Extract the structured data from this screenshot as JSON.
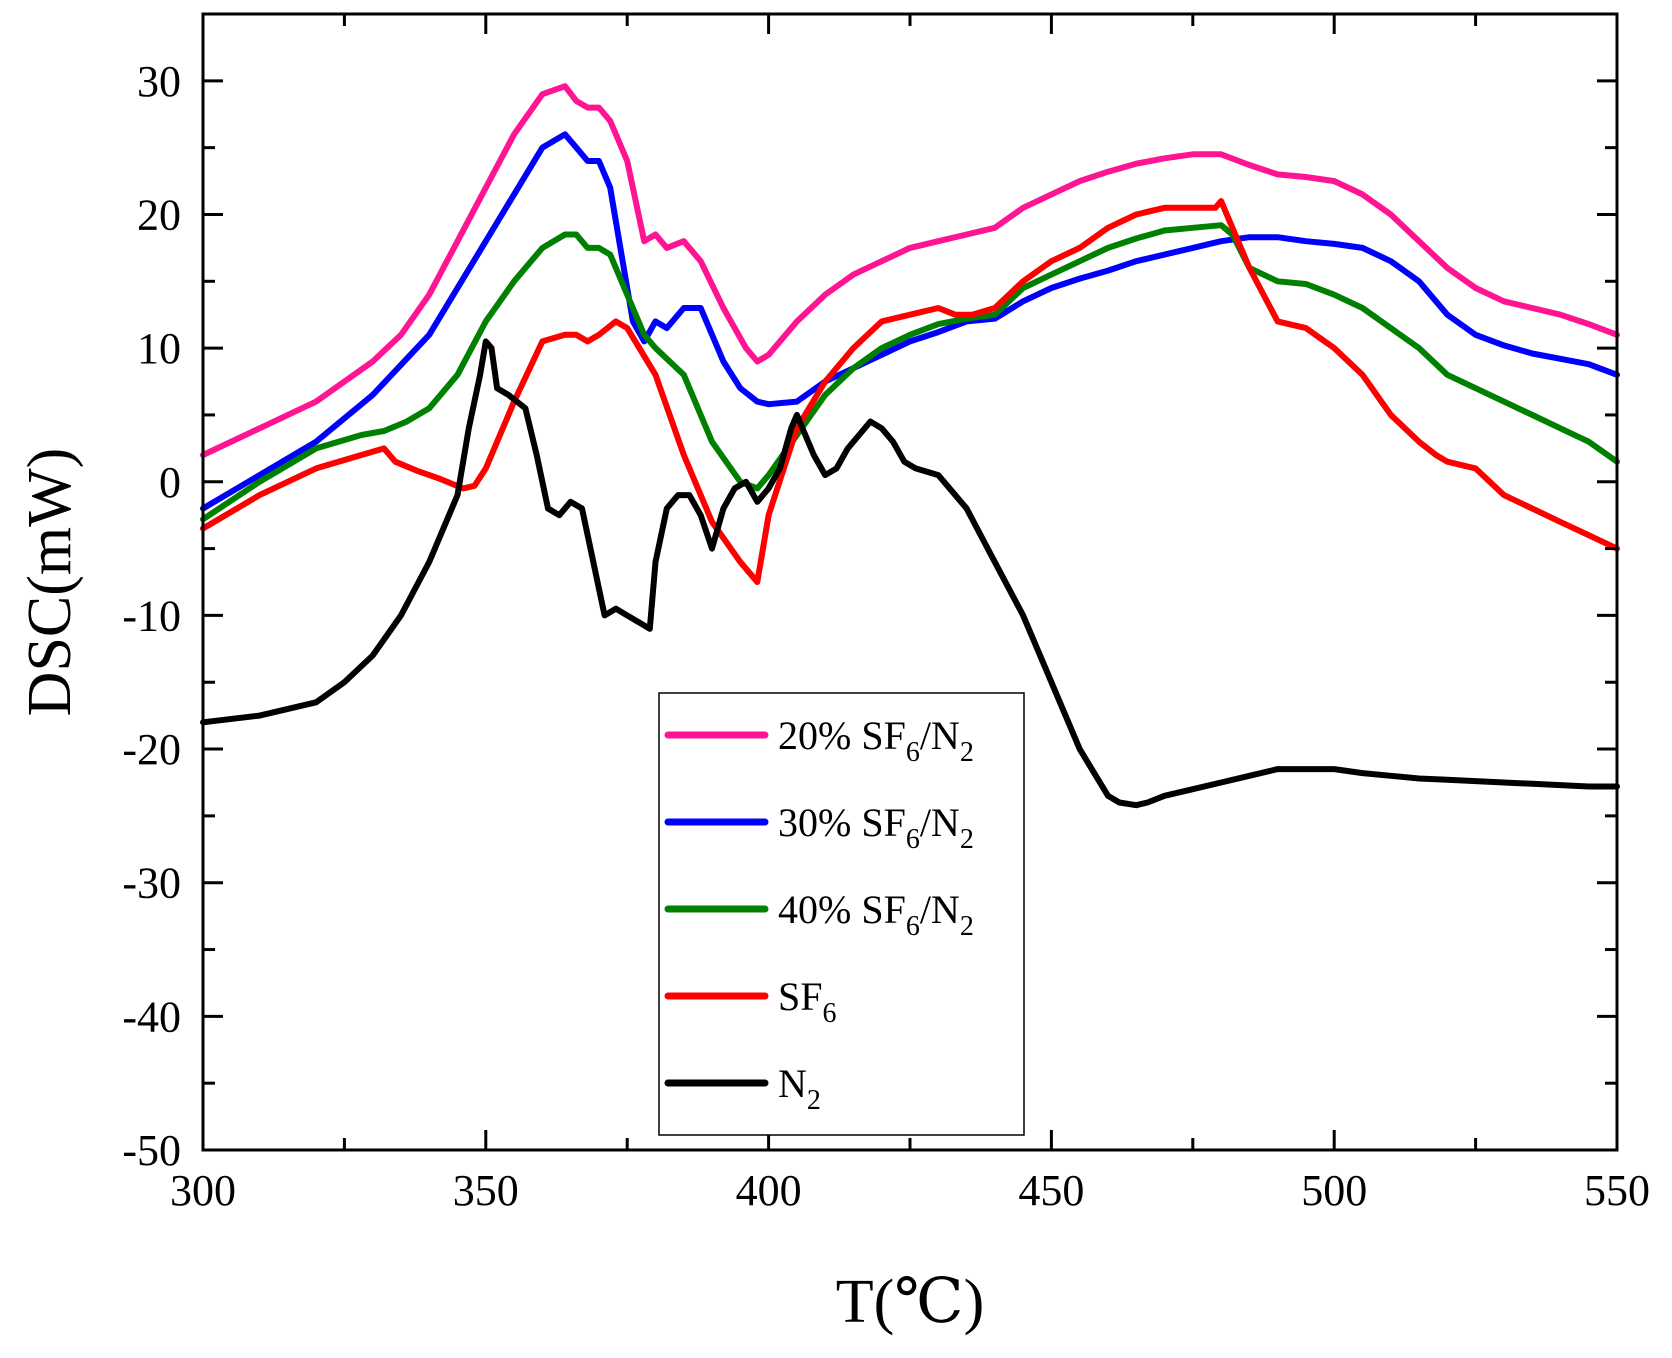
{
  "chart_data": {
    "type": "line",
    "title": "",
    "xlabel": "T(℃)",
    "ylabel": "DSC(mW)",
    "xlim": [
      300,
      550
    ],
    "ylim": [
      -50,
      35
    ],
    "xticks": [
      300,
      350,
      400,
      450,
      500,
      550
    ],
    "yticks": [
      -50,
      -40,
      -30,
      -20,
      -10,
      0,
      10,
      20,
      30
    ],
    "xtick_labels": [
      "300",
      "350",
      "400",
      "450",
      "500",
      "550"
    ],
    "ytick_labels": [
      "-50",
      "-40",
      "-30",
      "-20",
      "-10",
      "0",
      "10",
      "20",
      "30"
    ],
    "grid": false,
    "legend_position": "bottom-center",
    "series": [
      {
        "name": "20% SF6/N2",
        "label_parts": [
          "20% SF",
          "6",
          "/N",
          "2"
        ],
        "color": "#ff1493",
        "x": [
          300,
          310,
          320,
          330,
          335,
          340,
          345,
          350,
          355,
          360,
          364,
          366,
          368,
          370,
          372,
          375,
          378,
          380,
          382,
          385,
          388,
          392,
          396,
          398,
          400,
          405,
          410,
          415,
          420,
          425,
          430,
          435,
          440,
          445,
          450,
          455,
          460,
          465,
          470,
          475,
          480,
          485,
          490,
          495,
          500,
          505,
          510,
          515,
          520,
          525,
          530,
          535,
          540,
          545,
          550
        ],
        "y": [
          2,
          4,
          6,
          9,
          11,
          14,
          18,
          22,
          26,
          29,
          29.6,
          28.5,
          28,
          28,
          27,
          24,
          18,
          18.5,
          17.5,
          18,
          16.5,
          13,
          10,
          9,
          9.5,
          12,
          14,
          15.5,
          16.5,
          17.5,
          18,
          18.5,
          19,
          20.5,
          21.5,
          22.5,
          23.2,
          23.8,
          24.2,
          24.5,
          24.5,
          23.7,
          23,
          22.8,
          22.5,
          21.5,
          20,
          18,
          16,
          14.5,
          13.5,
          13,
          12.5,
          11.8,
          11
        ]
      },
      {
        "name": "30% SF6/N2",
        "label_parts": [
          "30% SF",
          "6",
          "/N",
          "2"
        ],
        "color": "#0000ff",
        "x": [
          300,
          310,
          320,
          330,
          340,
          350,
          355,
          360,
          364,
          366,
          368,
          370,
          372,
          374,
          376,
          378,
          380,
          382,
          385,
          388,
          392,
          395,
          398,
          400,
          405,
          410,
          415,
          420,
          425,
          430,
          435,
          440,
          445,
          450,
          455,
          460,
          465,
          470,
          475,
          480,
          485,
          490,
          495,
          500,
          505,
          510,
          515,
          520,
          525,
          530,
          535,
          540,
          545,
          550
        ],
        "y": [
          -2,
          0.5,
          3,
          6.5,
          11,
          18,
          21.5,
          25,
          26,
          25,
          24,
          24,
          22,
          17,
          12,
          10.5,
          12,
          11.5,
          13,
          13,
          9,
          7,
          6,
          5.8,
          6,
          7.5,
          8.5,
          9.5,
          10.5,
          11.2,
          12,
          12.2,
          13.5,
          14.5,
          15.2,
          15.8,
          16.5,
          17,
          17.5,
          18,
          18.3,
          18.3,
          18,
          17.8,
          17.5,
          16.5,
          15,
          12.5,
          11,
          10.2,
          9.6,
          9.2,
          8.8,
          8
        ]
      },
      {
        "name": "40% SF6/N2",
        "label_parts": [
          "40% SF",
          "6",
          "/N",
          "2"
        ],
        "color": "#008000",
        "x": [
          300,
          310,
          320,
          328,
          332,
          336,
          340,
          345,
          350,
          355,
          360,
          364,
          366,
          368,
          370,
          372,
          375,
          378,
          380,
          385,
          390,
          395,
          398,
          400,
          405,
          410,
          415,
          420,
          425,
          430,
          435,
          440,
          445,
          450,
          455,
          460,
          465,
          470,
          475,
          480,
          482,
          485,
          490,
          495,
          500,
          505,
          510,
          515,
          520,
          525,
          530,
          535,
          540,
          545,
          550
        ],
        "y": [
          -2.8,
          0,
          2.5,
          3.5,
          3.8,
          4.5,
          5.5,
          8,
          12,
          15,
          17.5,
          18.5,
          18.5,
          17.5,
          17.5,
          17,
          14,
          11,
          10,
          8,
          3,
          0,
          -0.5,
          0.5,
          3.5,
          6.5,
          8.5,
          10,
          11,
          11.8,
          12.2,
          12.5,
          14.5,
          15.5,
          16.5,
          17.5,
          18.2,
          18.8,
          19,
          19.2,
          18.5,
          16,
          15,
          14.8,
          14,
          13,
          11.5,
          10,
          8,
          7,
          6,
          5,
          4,
          3,
          1.5
        ]
      },
      {
        "name": "SF6",
        "label_parts": [
          "SF",
          "6",
          "",
          ""
        ],
        "color": "#ff0000",
        "x": [
          300,
          310,
          320,
          328,
          332,
          334,
          338,
          342,
          346,
          348,
          350,
          355,
          360,
          364,
          366,
          368,
          370,
          373,
          375,
          380,
          385,
          390,
          395,
          398,
          400,
          405,
          410,
          415,
          420,
          425,
          430,
          433,
          436,
          440,
          445,
          450,
          455,
          460,
          465,
          470,
          475,
          479,
          480,
          482,
          485,
          490,
          495,
          500,
          505,
          510,
          515,
          518,
          520,
          525,
          530,
          535,
          540,
          545,
          550
        ],
        "y": [
          -3.5,
          -1,
          1,
          2,
          2.5,
          1.5,
          0.8,
          0.2,
          -0.5,
          -0.3,
          1,
          6,
          10.5,
          11,
          11,
          10.5,
          11,
          12,
          11.5,
          8,
          2,
          -3,
          -6,
          -7.5,
          -2.5,
          4,
          7.5,
          10,
          12,
          12.5,
          13,
          12.5,
          12.5,
          13,
          15,
          16.5,
          17.5,
          19,
          20,
          20.5,
          20.5,
          20.5,
          21,
          19,
          16,
          12,
          11.5,
          10,
          8,
          5,
          3,
          2,
          1.5,
          1,
          -1,
          -2,
          -3,
          -4,
          -5
        ]
      },
      {
        "name": "N2",
        "label_parts": [
          "N",
          "2",
          "",
          ""
        ],
        "color": "#000000",
        "x": [
          300,
          310,
          320,
          325,
          330,
          335,
          340,
          345,
          347,
          349,
          350,
          351,
          352,
          354,
          357,
          359,
          361,
          363,
          365,
          367,
          369,
          371,
          373,
          375,
          377,
          379,
          380,
          382,
          384,
          386,
          388,
          390,
          392,
          394,
          396,
          398,
          400,
          402,
          404,
          405,
          406,
          408,
          410,
          412,
          414,
          416,
          418,
          420,
          422,
          424,
          426,
          430,
          435,
          440,
          445,
          450,
          455,
          460,
          462,
          465,
          467,
          470,
          475,
          480,
          485,
          490,
          495,
          500,
          505,
          510,
          515,
          520,
          525,
          530,
          535,
          540,
          545,
          550
        ],
        "y": [
          -18,
          -17.5,
          -16.5,
          -15,
          -13,
          -10,
          -6,
          -1,
          4,
          8,
          10.5,
          10,
          7,
          6.5,
          5.5,
          2,
          -2,
          -2.5,
          -1.5,
          -2,
          -6,
          -10,
          -9.5,
          -10,
          -10.5,
          -11,
          -6,
          -2,
          -1,
          -1,
          -2.5,
          -5,
          -2,
          -0.5,
          0,
          -1.5,
          -0.5,
          1,
          4,
          5,
          4,
          2,
          0.5,
          1,
          2.5,
          3.5,
          4.5,
          4,
          3,
          1.5,
          1,
          0.5,
          -2,
          -6,
          -10,
          -15,
          -20,
          -23.5,
          -24,
          -24.2,
          -24,
          -23.5,
          -23,
          -22.5,
          -22,
          -21.5,
          -21.5,
          -21.5,
          -21.8,
          -22,
          -22.2,
          -22.3,
          -22.4,
          -22.5,
          -22.6,
          -22.7,
          -22.8,
          -22.8
        ]
      }
    ]
  }
}
